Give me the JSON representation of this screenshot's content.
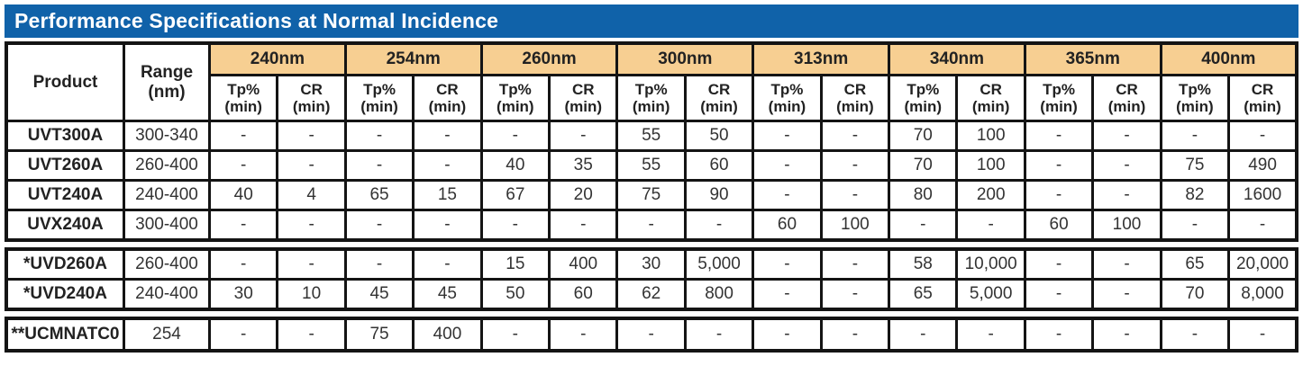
{
  "title_bar": {
    "title": "Performance Specifications at Normal Incidence"
  },
  "colors": {
    "title_bg": "#1062A9",
    "title_text": "#FFFFFF",
    "wavelength_header_bg": "#F7CF92",
    "grid_line": "#141414"
  },
  "header": {
    "product_label": "Product",
    "range_label_line1": "Range",
    "range_label_line2": "(nm)",
    "tp_label": "Tp%",
    "cr_label": "CR",
    "min_label": "(min)",
    "wavelengths": [
      "240nm",
      "254nm",
      "260nm",
      "300nm",
      "313nm",
      "340nm",
      "365nm",
      "400nm"
    ]
  },
  "groups": [
    {
      "name": "uvt-uvx-filters",
      "rows": [
        {
          "product": "UVT300A",
          "range": "300-340",
          "values": [
            "-",
            "-",
            "-",
            "-",
            "-",
            "-",
            "55",
            "50",
            "-",
            "-",
            "70",
            "100",
            "-",
            "-",
            "-",
            "-"
          ]
        },
        {
          "product": "UVT260A",
          "range": "260-400",
          "values": [
            "-",
            "-",
            "-",
            "-",
            "40",
            "35",
            "55",
            "60",
            "-",
            "-",
            "70",
            "100",
            "-",
            "-",
            "75",
            "490"
          ]
        },
        {
          "product": "UVT240A",
          "range": "240-400",
          "values": [
            "40",
            "4",
            "65",
            "15",
            "67",
            "20",
            "75",
            "90",
            "-",
            "-",
            "80",
            "200",
            "-",
            "-",
            "82",
            "1600"
          ]
        },
        {
          "product": "UVX240A",
          "range": "300-400",
          "values": [
            "-",
            "-",
            "-",
            "-",
            "-",
            "-",
            "-",
            "-",
            "60",
            "100",
            "-",
            "-",
            "60",
            "100",
            "-",
            "-"
          ]
        }
      ]
    },
    {
      "name": "uvd-filters",
      "rows": [
        {
          "product": "*UVD260A",
          "range": "260-400",
          "values": [
            "-",
            "-",
            "-",
            "-",
            "15",
            "400",
            "30",
            "5,000",
            "-",
            "-",
            "58",
            "10,000",
            "-",
            "-",
            "65",
            "20,000"
          ]
        },
        {
          "product": "*UVD240A",
          "range": "240-400",
          "values": [
            "30",
            "10",
            "45",
            "45",
            "50",
            "60",
            "62",
            "800",
            "-",
            "-",
            "65",
            "5,000",
            "-",
            "-",
            "70",
            "8,000"
          ]
        }
      ]
    },
    {
      "name": "ucm-filter",
      "rows": [
        {
          "product": "**UCMNATC0",
          "range": "254",
          "values": [
            "-",
            "-",
            "75",
            "400",
            "-",
            "-",
            "-",
            "-",
            "-",
            "-",
            "-",
            "-",
            "-",
            "-",
            "-",
            "-"
          ]
        }
      ]
    }
  ]
}
